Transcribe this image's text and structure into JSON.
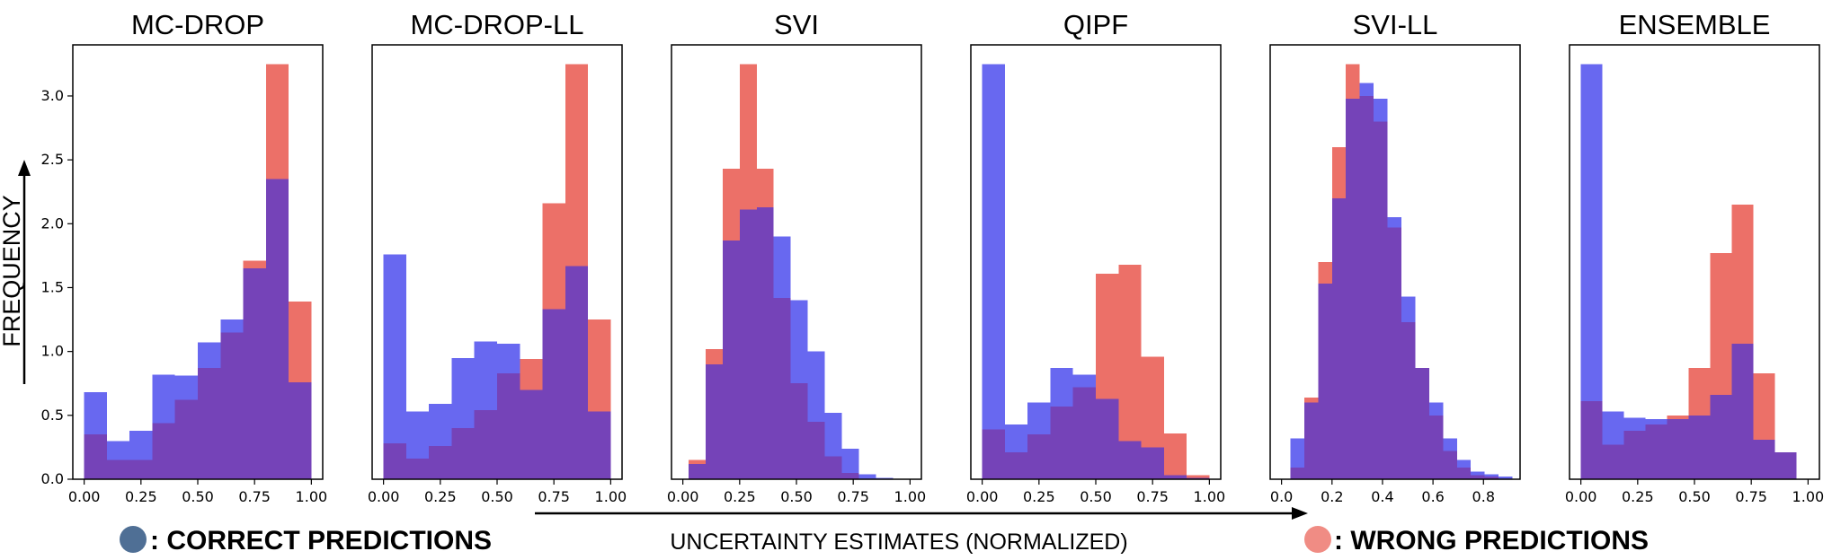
{
  "figure": {
    "ylabel": "FREQUENCY",
    "xlabel": "UNCERTAINTY  ESTIMATES (NORMALIZED)",
    "legend": [
      {
        "label": ": CORRECT  PREDICTIONS",
        "color": "#4f6f95"
      },
      {
        "label": ": WRONG  PREDICTIONS",
        "color": "#f08c84"
      }
    ],
    "colors": {
      "correct": "#6868f0",
      "wrong": "#ec7068",
      "overlap": "#7543b8"
    }
  },
  "chart_data": [
    {
      "type": "bar",
      "title": "MC-DROP",
      "ylim": [
        0,
        3.4
      ],
      "yticks": [
        0.0,
        0.5,
        1.0,
        1.5,
        2.0,
        2.5,
        3.0
      ],
      "xlim": [
        -0.05,
        1.05
      ],
      "xticks": [
        0.0,
        0.25,
        0.5,
        0.75,
        1.0
      ],
      "bin_width": 0.1,
      "series": [
        {
          "name": "Correct predictions",
          "bin_starts": [
            0.0,
            0.1,
            0.2,
            0.3,
            0.4,
            0.5,
            0.6,
            0.7,
            0.8,
            0.9
          ],
          "values": [
            0.68,
            0.3,
            0.38,
            0.82,
            0.81,
            1.07,
            1.25,
            1.65,
            2.35,
            0.76
          ]
        },
        {
          "name": "Wrong predictions",
          "bin_starts": [
            0.0,
            0.1,
            0.2,
            0.3,
            0.4,
            0.5,
            0.6,
            0.7,
            0.8,
            0.9
          ],
          "values": [
            0.35,
            0.15,
            0.15,
            0.44,
            0.62,
            0.87,
            1.15,
            1.71,
            3.25,
            1.39
          ]
        }
      ]
    },
    {
      "type": "bar",
      "title": "MC-DROP-LL",
      "ylim": [
        0,
        3.4
      ],
      "yticks": [
        0.0,
        0.5,
        1.0,
        1.5,
        2.0,
        2.5,
        3.0
      ],
      "xlim": [
        -0.05,
        1.05
      ],
      "xticks": [
        0.0,
        0.25,
        0.5,
        0.75,
        1.0
      ],
      "bin_width": 0.1,
      "series": [
        {
          "name": "Correct predictions",
          "bin_starts": [
            0.0,
            0.1,
            0.2,
            0.3,
            0.4,
            0.5,
            0.6,
            0.7,
            0.8,
            0.9
          ],
          "values": [
            1.76,
            0.53,
            0.59,
            0.95,
            1.08,
            1.06,
            0.7,
            1.33,
            1.67,
            0.53
          ]
        },
        {
          "name": "Wrong predictions",
          "bin_starts": [
            0.0,
            0.1,
            0.2,
            0.3,
            0.4,
            0.5,
            0.6,
            0.7,
            0.8,
            0.9
          ],
          "values": [
            0.28,
            0.16,
            0.26,
            0.4,
            0.54,
            0.83,
            0.94,
            2.16,
            3.25,
            1.25
          ]
        }
      ]
    },
    {
      "type": "bar",
      "title": "SVI",
      "ylim": [
        0,
        3.4
      ],
      "yticks": [
        0.0,
        0.5,
        1.0,
        1.5,
        2.0,
        2.5,
        3.0
      ],
      "xlim": [
        -0.05,
        1.05
      ],
      "xticks": [
        0.0,
        0.25,
        0.5,
        0.75,
        1.0
      ],
      "bin_width": 0.075,
      "series": [
        {
          "name": "Correct predictions",
          "bin_starts": [
            0.025,
            0.1,
            0.175,
            0.25,
            0.325,
            0.4,
            0.475,
            0.55,
            0.625,
            0.7,
            0.775,
            0.85
          ],
          "values": [
            0.12,
            0.9,
            1.87,
            2.11,
            2.13,
            1.9,
            1.4,
            1.0,
            0.52,
            0.24,
            0.04,
            0.01
          ]
        },
        {
          "name": "Wrong predictions",
          "bin_starts": [
            0.025,
            0.1,
            0.175,
            0.25,
            0.325,
            0.4,
            0.475,
            0.55,
            0.625,
            0.7,
            0.775,
            0.85
          ],
          "values": [
            0.15,
            1.02,
            2.43,
            3.25,
            2.43,
            1.42,
            0.75,
            0.45,
            0.18,
            0.05,
            0.0,
            0.0
          ]
        }
      ]
    },
    {
      "type": "bar",
      "title": "QIPF",
      "ylim": [
        0,
        3.4
      ],
      "yticks": [
        0.0,
        0.5,
        1.0,
        1.5,
        2.0,
        2.5,
        3.0
      ],
      "xlim": [
        -0.05,
        1.05
      ],
      "xticks": [
        0.0,
        0.25,
        0.5,
        0.75,
        1.0
      ],
      "bin_width": 0.1,
      "series": [
        {
          "name": "Correct predictions",
          "bin_starts": [
            0.0,
            0.1,
            0.2,
            0.3,
            0.4,
            0.5,
            0.6,
            0.7,
            0.8,
            0.9
          ],
          "values": [
            3.25,
            0.43,
            0.6,
            0.87,
            0.82,
            0.63,
            0.3,
            0.25,
            0.03,
            0.01
          ]
        },
        {
          "name": "Wrong predictions",
          "bin_starts": [
            0.0,
            0.1,
            0.2,
            0.3,
            0.4,
            0.5,
            0.6,
            0.7,
            0.8,
            0.9
          ],
          "values": [
            0.39,
            0.21,
            0.35,
            0.57,
            0.72,
            1.61,
            1.68,
            0.96,
            0.36,
            0.03
          ]
        }
      ]
    },
    {
      "type": "bar",
      "title": "SVI-LL",
      "ylim": [
        0,
        3.4
      ],
      "yticks": [
        0.0,
        0.5,
        1.0,
        1.5,
        2.0,
        2.5,
        3.0
      ],
      "xlim": [
        -0.045,
        0.945
      ],
      "xticks": [
        0.0,
        0.2,
        0.4,
        0.6,
        0.8
      ],
      "xtick_labels": [
        "0.0",
        "0.2",
        "0.4",
        "0.6",
        "0.8"
      ],
      "bin_width": 0.055,
      "series": [
        {
          "name": "Correct predictions",
          "bin_starts": [
            0.035,
            0.09,
            0.145,
            0.2,
            0.255,
            0.31,
            0.365,
            0.42,
            0.475,
            0.53,
            0.585,
            0.64,
            0.695,
            0.75,
            0.805,
            0.86
          ],
          "values": [
            0.32,
            0.6,
            1.53,
            2.2,
            2.98,
            3.1,
            2.98,
            2.05,
            1.43,
            0.87,
            0.6,
            0.32,
            0.15,
            0.06,
            0.04,
            0.02
          ]
        },
        {
          "name": "Wrong predictions",
          "bin_starts": [
            0.035,
            0.09,
            0.145,
            0.2,
            0.255,
            0.31,
            0.365,
            0.42,
            0.475,
            0.53,
            0.585,
            0.64,
            0.695,
            0.75,
            0.805,
            0.86
          ],
          "values": [
            0.09,
            0.64,
            1.7,
            2.6,
            3.25,
            3.0,
            2.8,
            1.97,
            1.23,
            0.87,
            0.5,
            0.22,
            0.09,
            0.03,
            0.02,
            0.0
          ]
        }
      ]
    },
    {
      "type": "bar",
      "title": "ENSEMBLE",
      "ylim": [
        0,
        3.4
      ],
      "yticks": [
        0.0,
        0.5,
        1.0,
        1.5,
        2.0,
        2.5,
        3.0
      ],
      "xlim": [
        -0.05,
        1.05
      ],
      "xticks": [
        0.0,
        0.25,
        0.5,
        0.75,
        1.0
      ],
      "bin_width": 0.095,
      "series": [
        {
          "name": "Correct predictions",
          "bin_starts": [
            0.0,
            0.095,
            0.19,
            0.285,
            0.38,
            0.475,
            0.57,
            0.665,
            0.76,
            0.855
          ],
          "values": [
            3.25,
            0.53,
            0.48,
            0.47,
            0.47,
            0.5,
            0.66,
            1.06,
            0.31,
            0.21
          ]
        },
        {
          "name": "Wrong predictions",
          "bin_starts": [
            0.0,
            0.095,
            0.19,
            0.285,
            0.38,
            0.475,
            0.57,
            0.665,
            0.76,
            0.855
          ],
          "values": [
            0.61,
            0.27,
            0.38,
            0.43,
            0.5,
            0.87,
            1.77,
            2.15,
            0.83,
            0.21
          ]
        }
      ]
    }
  ]
}
